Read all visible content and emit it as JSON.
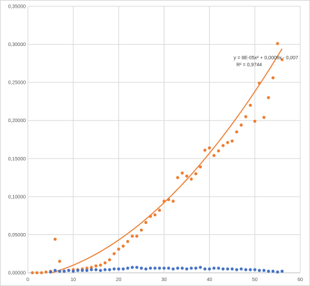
{
  "chart_data": {
    "type": "scatter",
    "xlim": [
      0,
      60
    ],
    "ylim": [
      0,
      0.35
    ],
    "x_ticks": [
      "0",
      "10",
      "20",
      "30",
      "40",
      "50",
      "60"
    ],
    "y_ticks": [
      "0,00000",
      "0,05000",
      "0,10000",
      "0,15000",
      "0,20000",
      "0,25000",
      "0,30000",
      "0,35000"
    ],
    "grid": "horizontal and vertical major gridlines",
    "legend": "none",
    "series": [
      {
        "color": "#ED7D31",
        "points": [
          [
            1,
            0.0
          ],
          [
            2,
            0.0
          ],
          [
            3,
            0.0
          ],
          [
            4,
            0.001
          ],
          [
            5,
            0.002
          ],
          [
            6,
            0.044
          ],
          [
            7,
            0.015
          ],
          [
            8,
            0.002
          ],
          [
            9,
            0.003
          ],
          [
            10,
            0.004
          ],
          [
            11,
            0.004
          ],
          [
            12,
            0.005
          ],
          [
            13,
            0.006
          ],
          [
            14,
            0.007
          ],
          [
            15,
            0.009
          ],
          [
            16,
            0.01
          ],
          [
            17,
            0.013
          ],
          [
            18,
            0.017
          ],
          [
            19,
            0.025
          ],
          [
            20,
            0.031
          ],
          [
            21,
            0.035
          ],
          [
            22,
            0.041
          ],
          [
            23,
            0.048
          ],
          [
            24,
            0.048
          ],
          [
            25,
            0.056
          ],
          [
            26,
            0.066
          ],
          [
            27,
            0.074
          ],
          [
            28,
            0.076
          ],
          [
            29,
            0.082
          ],
          [
            30,
            0.094
          ],
          [
            31,
            0.096
          ],
          [
            32,
            0.094
          ],
          [
            33,
            0.125
          ],
          [
            34,
            0.131
          ],
          [
            35,
            0.127
          ],
          [
            36,
            0.123
          ],
          [
            37,
            0.13
          ],
          [
            38,
            0.139
          ],
          [
            39,
            0.161
          ],
          [
            40,
            0.164
          ],
          [
            41,
            0.154
          ],
          [
            42,
            0.16
          ],
          [
            43,
            0.167
          ],
          [
            44,
            0.171
          ],
          [
            45,
            0.173
          ],
          [
            46,
            0.185
          ],
          [
            47,
            0.194
          ],
          [
            48,
            0.205
          ],
          [
            49,
            0.22
          ],
          [
            50,
            0.199
          ],
          [
            51,
            0.249
          ],
          [
            52,
            0.204
          ],
          [
            53,
            0.23
          ],
          [
            54,
            0.256
          ],
          [
            55,
            0.301
          ],
          [
            56,
            0.28
          ]
        ]
      },
      {
        "color": "#4472C4",
        "points": [
          [
            5,
            0.001
          ],
          [
            6,
            0.003
          ],
          [
            7,
            0.002
          ],
          [
            8,
            0.002
          ],
          [
            9,
            0.003
          ],
          [
            10,
            0.002
          ],
          [
            11,
            0.003
          ],
          [
            12,
            0.003
          ],
          [
            13,
            0.003
          ],
          [
            14,
            0.004
          ],
          [
            15,
            0.004
          ],
          [
            16,
            0.003
          ],
          [
            17,
            0.004
          ],
          [
            18,
            0.004
          ],
          [
            19,
            0.005
          ],
          [
            20,
            0.005
          ],
          [
            21,
            0.005
          ],
          [
            22,
            0.006
          ],
          [
            23,
            0.007
          ],
          [
            24,
            0.007
          ],
          [
            25,
            0.006
          ],
          [
            26,
            0.005
          ],
          [
            27,
            0.006
          ],
          [
            28,
            0.006
          ],
          [
            29,
            0.006
          ],
          [
            30,
            0.006
          ],
          [
            31,
            0.006
          ],
          [
            32,
            0.005
          ],
          [
            33,
            0.006
          ],
          [
            34,
            0.006
          ],
          [
            35,
            0.005
          ],
          [
            36,
            0.006
          ],
          [
            37,
            0.006
          ],
          [
            38,
            0.007
          ],
          [
            39,
            0.005
          ],
          [
            40,
            0.005
          ],
          [
            41,
            0.006
          ],
          [
            42,
            0.006
          ],
          [
            43,
            0.005
          ],
          [
            44,
            0.005
          ],
          [
            45,
            0.005
          ],
          [
            46,
            0.004
          ],
          [
            47,
            0.005
          ],
          [
            48,
            0.004
          ],
          [
            49,
            0.004
          ],
          [
            50,
            0.004
          ],
          [
            51,
            0.003
          ],
          [
            52,
            0.003
          ],
          [
            53,
            0.002
          ],
          [
            54,
            0.002
          ],
          [
            55,
            0.001
          ],
          [
            56,
            0.002
          ]
        ]
      }
    ],
    "trendline": {
      "type": "polynomial",
      "order": 2,
      "color": "#ED7D31",
      "a": 8e-05,
      "b": 0.0009,
      "c": -0.007,
      "x_range": [
        5,
        56
      ],
      "equation_label": "y = 8E-05x² + 0,0009x - 0,007",
      "r2_label": "R² = 0,9744"
    }
  }
}
